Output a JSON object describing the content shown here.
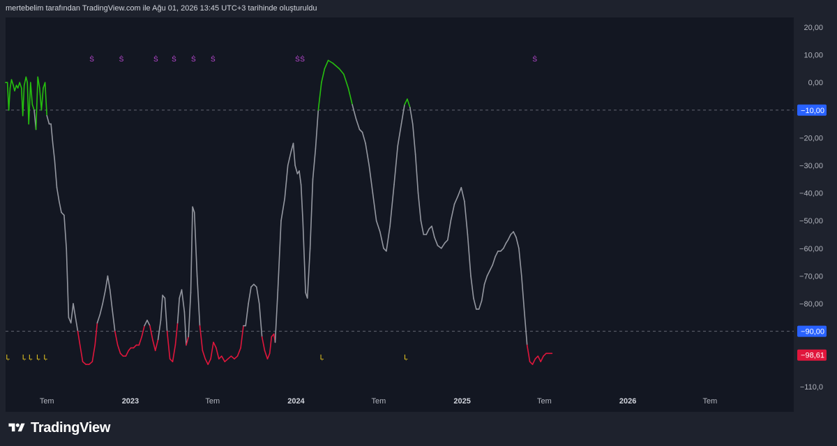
{
  "header": {
    "text": "mertebelim tarafından TradingView.com ile Ağu 01, 2026 13:45 UTC+3 tarihinde oluşturuldu"
  },
  "brand": {
    "name": "TradingView",
    "logo_icon": "tradingview-logo-icon"
  },
  "colors": {
    "background": "#1e222d",
    "plot_background": "#131722",
    "line_neutral": "#9598a1",
    "line_high": "#26c00f",
    "line_low": "#e0163c",
    "short_marker": "#c04ad8",
    "long_marker": "#f5d320",
    "badge_blue": "#2962ff",
    "badge_red": "#e0163c"
  },
  "chart_data": {
    "type": "line",
    "title": "",
    "xlabel": "",
    "ylabel": "",
    "ylim": [
      -113,
      23
    ],
    "y_tick_labels": [
      "20,00",
      "10,00",
      "0,00",
      "−20,00",
      "−30,00",
      "−40,00",
      "−50,00",
      "−60,00",
      "−70,00",
      "−80,00",
      "−110,0"
    ],
    "y_tick_values": [
      20,
      10,
      0,
      -20,
      -30,
      -40,
      -50,
      -60,
      -70,
      -80,
      -110
    ],
    "x_tick_labels": [
      {
        "label": "Tem",
        "date": "2022-07",
        "year": false
      },
      {
        "label": "2023",
        "date": "2023-01",
        "year": true
      },
      {
        "label": "Tem",
        "date": "2023-07",
        "year": false
      },
      {
        "label": "2024",
        "date": "2024-01",
        "year": true
      },
      {
        "label": "Tem",
        "date": "2024-07",
        "year": false
      },
      {
        "label": "2025",
        "date": "2025-01",
        "year": true
      },
      {
        "label": "Tem",
        "date": "2025-07",
        "year": false
      },
      {
        "label": "2026",
        "date": "2026-01",
        "year": true
      },
      {
        "label": "Tem",
        "date": "2026-07",
        "year": false
      }
    ],
    "levels": [
      {
        "value": -10,
        "label": "−10,00",
        "color": "#2962ff"
      },
      {
        "value": -90,
        "label": "−90,00",
        "color": "#2962ff"
      }
    ],
    "last_value": {
      "value": -98.61,
      "label": "−98,61",
      "color": "#e0163c"
    },
    "thresholds": {
      "upper": -10,
      "lower": -90
    },
    "series": [
      {
        "points": [
          [
            "2022-04-01",
            0
          ],
          [
            "2022-04-05",
            0
          ],
          [
            "2022-04-08",
            -10
          ],
          [
            "2022-04-11",
            -2
          ],
          [
            "2022-04-14",
            1
          ],
          [
            "2022-04-18",
            -1
          ],
          [
            "2022-04-21",
            -3
          ],
          [
            "2022-04-25",
            -1
          ],
          [
            "2022-04-28",
            -2
          ],
          [
            "2022-05-02",
            0
          ],
          [
            "2022-05-06",
            -2
          ],
          [
            "2022-05-09",
            -12
          ],
          [
            "2022-05-12",
            -1
          ],
          [
            "2022-05-16",
            2
          ],
          [
            "2022-05-19",
            0
          ],
          [
            "2022-05-22",
            -15
          ],
          [
            "2022-05-26",
            0
          ],
          [
            "2022-05-30",
            -8
          ],
          [
            "2022-06-03",
            -10
          ],
          [
            "2022-06-07",
            -17
          ],
          [
            "2022-06-11",
            2
          ],
          [
            "2022-06-15",
            -2
          ],
          [
            "2022-06-19",
            -10
          ],
          [
            "2022-06-23",
            -2
          ],
          [
            "2022-06-27",
            0
          ],
          [
            "2022-07-01",
            -12
          ],
          [
            "2022-07-06",
            -15
          ],
          [
            "2022-07-10",
            -15
          ],
          [
            "2022-07-14",
            -22
          ],
          [
            "2022-07-18",
            -28
          ],
          [
            "2022-07-23",
            -38
          ],
          [
            "2022-07-28",
            -43
          ],
          [
            "2022-08-02",
            -47
          ],
          [
            "2022-08-08",
            -48
          ],
          [
            "2022-08-13",
            -60
          ],
          [
            "2022-08-18",
            -85
          ],
          [
            "2022-08-23",
            -87
          ],
          [
            "2022-08-28",
            -80
          ],
          [
            "2022-09-02",
            -85
          ],
          [
            "2022-09-07",
            -90
          ],
          [
            "2022-09-12",
            -95
          ],
          [
            "2022-09-18",
            -101
          ],
          [
            "2022-09-25",
            -102
          ],
          [
            "2022-10-02",
            -102
          ],
          [
            "2022-10-09",
            -101
          ],
          [
            "2022-10-15",
            -95
          ],
          [
            "2022-10-20",
            -87
          ],
          [
            "2022-10-26",
            -84
          ],
          [
            "2022-11-01",
            -80
          ],
          [
            "2022-11-07",
            -75
          ],
          [
            "2022-11-12",
            -70
          ],
          [
            "2022-11-17",
            -75
          ],
          [
            "2022-11-22",
            -82
          ],
          [
            "2022-11-28",
            -90
          ],
          [
            "2022-12-04",
            -95
          ],
          [
            "2022-12-10",
            -98
          ],
          [
            "2022-12-16",
            -99
          ],
          [
            "2022-12-22",
            -99
          ],
          [
            "2022-12-28",
            -97
          ],
          [
            "2023-01-02",
            -96
          ],
          [
            "2023-01-08",
            -96
          ],
          [
            "2023-01-14",
            -95
          ],
          [
            "2023-01-20",
            -95
          ],
          [
            "2023-01-26",
            -92
          ],
          [
            "2023-02-01",
            -88
          ],
          [
            "2023-02-07",
            -86
          ],
          [
            "2023-02-13",
            -88
          ],
          [
            "2023-02-19",
            -93
          ],
          [
            "2023-02-25",
            -97
          ],
          [
            "2023-03-03",
            -93
          ],
          [
            "2023-03-09",
            -86
          ],
          [
            "2023-03-13",
            -77
          ],
          [
            "2023-03-18",
            -78
          ],
          [
            "2023-03-23",
            -90
          ],
          [
            "2023-03-29",
            -100
          ],
          [
            "2023-04-04",
            -101
          ],
          [
            "2023-04-10",
            -95
          ],
          [
            "2023-04-15",
            -87
          ],
          [
            "2023-04-19",
            -78
          ],
          [
            "2023-04-24",
            -75
          ],
          [
            "2023-04-30",
            -83
          ],
          [
            "2023-05-04",
            -95
          ],
          [
            "2023-05-09",
            -92
          ],
          [
            "2023-05-14",
            -76
          ],
          [
            "2023-05-18",
            -45
          ],
          [
            "2023-05-22",
            -47
          ],
          [
            "2023-05-28",
            -70
          ],
          [
            "2023-06-03",
            -88
          ],
          [
            "2023-06-09",
            -97
          ],
          [
            "2023-06-15",
            -100
          ],
          [
            "2023-06-21",
            -102
          ],
          [
            "2023-06-27",
            -100
          ],
          [
            "2023-07-03",
            -94
          ],
          [
            "2023-07-09",
            -96
          ],
          [
            "2023-07-15",
            -100
          ],
          [
            "2023-07-21",
            -99
          ],
          [
            "2023-07-28",
            -101
          ],
          [
            "2023-08-04",
            -100
          ],
          [
            "2023-08-11",
            -99
          ],
          [
            "2023-08-18",
            -100
          ],
          [
            "2023-08-25",
            -99
          ],
          [
            "2023-09-01",
            -96
          ],
          [
            "2023-09-07",
            -88
          ],
          [
            "2023-09-12",
            -88
          ],
          [
            "2023-09-18",
            -80
          ],
          [
            "2023-09-24",
            -74
          ],
          [
            "2023-09-30",
            -73
          ],
          [
            "2023-10-06",
            -74
          ],
          [
            "2023-10-12",
            -80
          ],
          [
            "2023-10-18",
            -92
          ],
          [
            "2023-10-24",
            -97
          ],
          [
            "2023-10-30",
            -100
          ],
          [
            "2023-11-04",
            -98
          ],
          [
            "2023-11-08",
            -92
          ],
          [
            "2023-11-13",
            -91
          ],
          [
            "2023-11-16",
            -94
          ],
          [
            "2023-11-22",
            -75
          ],
          [
            "2023-11-29",
            -50
          ],
          [
            "2023-12-07",
            -42
          ],
          [
            "2023-12-14",
            -30
          ],
          [
            "2023-12-21",
            -25
          ],
          [
            "2023-12-26",
            -22
          ],
          [
            "2023-12-30",
            -30
          ],
          [
            "2024-01-04",
            -33
          ],
          [
            "2024-01-08",
            -32
          ],
          [
            "2024-01-12",
            -37
          ],
          [
            "2024-01-16",
            -50
          ],
          [
            "2024-01-22",
            -76
          ],
          [
            "2024-01-26",
            -78
          ],
          [
            "2024-02-01",
            -60
          ],
          [
            "2024-02-07",
            -35
          ],
          [
            "2024-02-13",
            -24
          ],
          [
            "2024-02-19",
            -10
          ],
          [
            "2024-02-26",
            0
          ],
          [
            "2024-03-04",
            5
          ],
          [
            "2024-03-12",
            8
          ],
          [
            "2024-03-22",
            7
          ],
          [
            "2024-04-05",
            5
          ],
          [
            "2024-04-15",
            3
          ],
          [
            "2024-04-25",
            -2
          ],
          [
            "2024-05-04",
            -8
          ],
          [
            "2024-05-12",
            -13
          ],
          [
            "2024-05-20",
            -17
          ],
          [
            "2024-05-26",
            -18
          ],
          [
            "2024-06-02",
            -22
          ],
          [
            "2024-06-10",
            -30
          ],
          [
            "2024-06-18",
            -40
          ],
          [
            "2024-06-26",
            -50
          ],
          [
            "2024-07-04",
            -54
          ],
          [
            "2024-07-12",
            -60
          ],
          [
            "2024-07-18",
            -61
          ],
          [
            "2024-07-26",
            -52
          ],
          [
            "2024-08-04",
            -37
          ],
          [
            "2024-08-12",
            -23
          ],
          [
            "2024-08-20",
            -15
          ],
          [
            "2024-08-27",
            -8
          ],
          [
            "2024-09-02",
            -6
          ],
          [
            "2024-09-08",
            -9
          ],
          [
            "2024-09-14",
            -15
          ],
          [
            "2024-09-20",
            -26
          ],
          [
            "2024-09-26",
            -40
          ],
          [
            "2024-10-02",
            -50
          ],
          [
            "2024-10-08",
            -55
          ],
          [
            "2024-10-14",
            -55
          ],
          [
            "2024-10-20",
            -53
          ],
          [
            "2024-10-26",
            -52
          ],
          [
            "2024-11-01",
            -56
          ],
          [
            "2024-11-08",
            -59
          ],
          [
            "2024-11-16",
            -60
          ],
          [
            "2024-11-24",
            -58
          ],
          [
            "2024-11-30",
            -57
          ],
          [
            "2024-12-07",
            -50
          ],
          [
            "2024-12-15",
            -44
          ],
          [
            "2024-12-23",
            -41
          ],
          [
            "2024-12-30",
            -38
          ],
          [
            "2025-01-06",
            -43
          ],
          [
            "2025-01-13",
            -55
          ],
          [
            "2025-01-20",
            -70
          ],
          [
            "2025-01-26",
            -78
          ],
          [
            "2025-02-01",
            -82
          ],
          [
            "2025-02-07",
            -82
          ],
          [
            "2025-02-13",
            -79
          ],
          [
            "2025-02-19",
            -73
          ],
          [
            "2025-02-25",
            -70
          ],
          [
            "2025-03-03",
            -68
          ],
          [
            "2025-03-09",
            -66
          ],
          [
            "2025-03-15",
            -63
          ],
          [
            "2025-03-21",
            -61
          ],
          [
            "2025-03-27",
            -61
          ],
          [
            "2025-04-02",
            -60
          ],
          [
            "2025-04-08",
            -58
          ],
          [
            "2025-04-12",
            -57
          ],
          [
            "2025-04-18",
            -55
          ],
          [
            "2025-04-24",
            -54
          ],
          [
            "2025-04-30",
            -56
          ],
          [
            "2025-05-06",
            -60
          ],
          [
            "2025-05-12",
            -70
          ],
          [
            "2025-05-18",
            -83
          ],
          [
            "2025-05-24",
            -95
          ],
          [
            "2025-05-30",
            -101
          ],
          [
            "2025-06-05",
            -102
          ],
          [
            "2025-06-11",
            -100
          ],
          [
            "2025-06-17",
            -99
          ],
          [
            "2025-06-23",
            -101
          ],
          [
            "2025-06-29",
            -99
          ],
          [
            "2025-07-05",
            -98
          ],
          [
            "2025-07-12",
            -98
          ],
          [
            "2025-07-18",
            -98
          ]
        ]
      }
    ],
    "short_signals": [
      "2022-10-08",
      "2022-12-12",
      "2023-02-26",
      "2023-04-07",
      "2023-05-20",
      "2023-07-02",
      "2024-01-04",
      "2024-01-15",
      "2025-06-10"
    ],
    "long_signals": [
      "2022-04-06",
      "2022-05-12",
      "2022-05-26",
      "2022-06-12",
      "2022-06-28",
      "2024-02-27",
      "2024-08-30"
    ],
    "short_signal_label": "Ṡ",
    "long_signal_label": "Ḷ"
  }
}
